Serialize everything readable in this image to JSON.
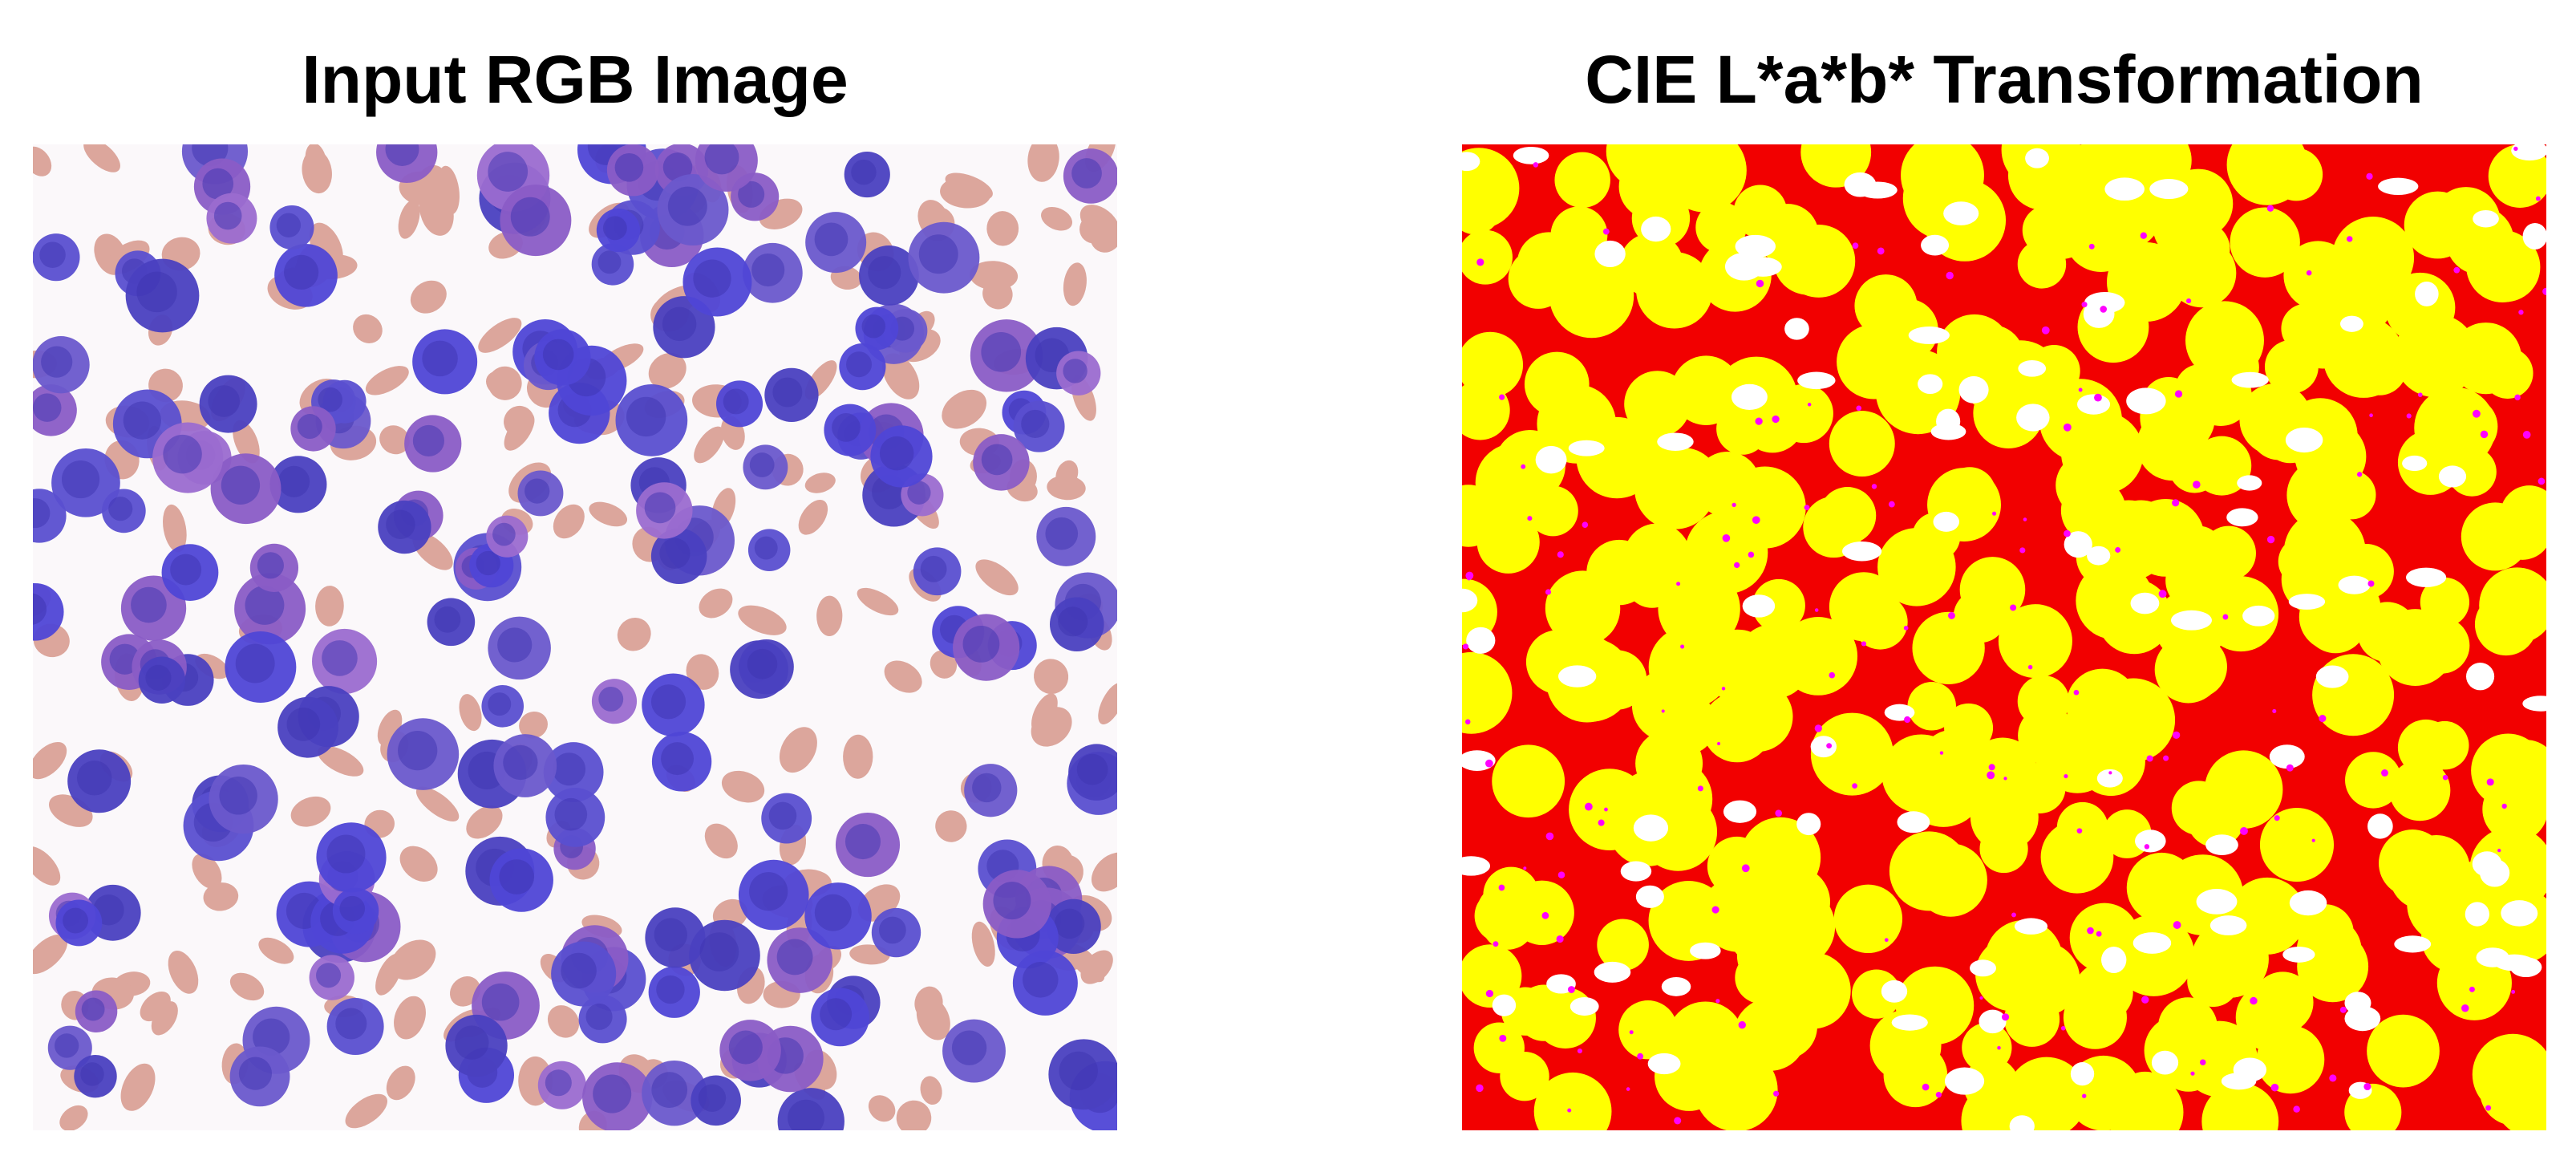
{
  "panels": [
    {
      "title": "Input RGB Image"
    },
    {
      "title": "CIE L*a*b* Transformation"
    }
  ]
}
